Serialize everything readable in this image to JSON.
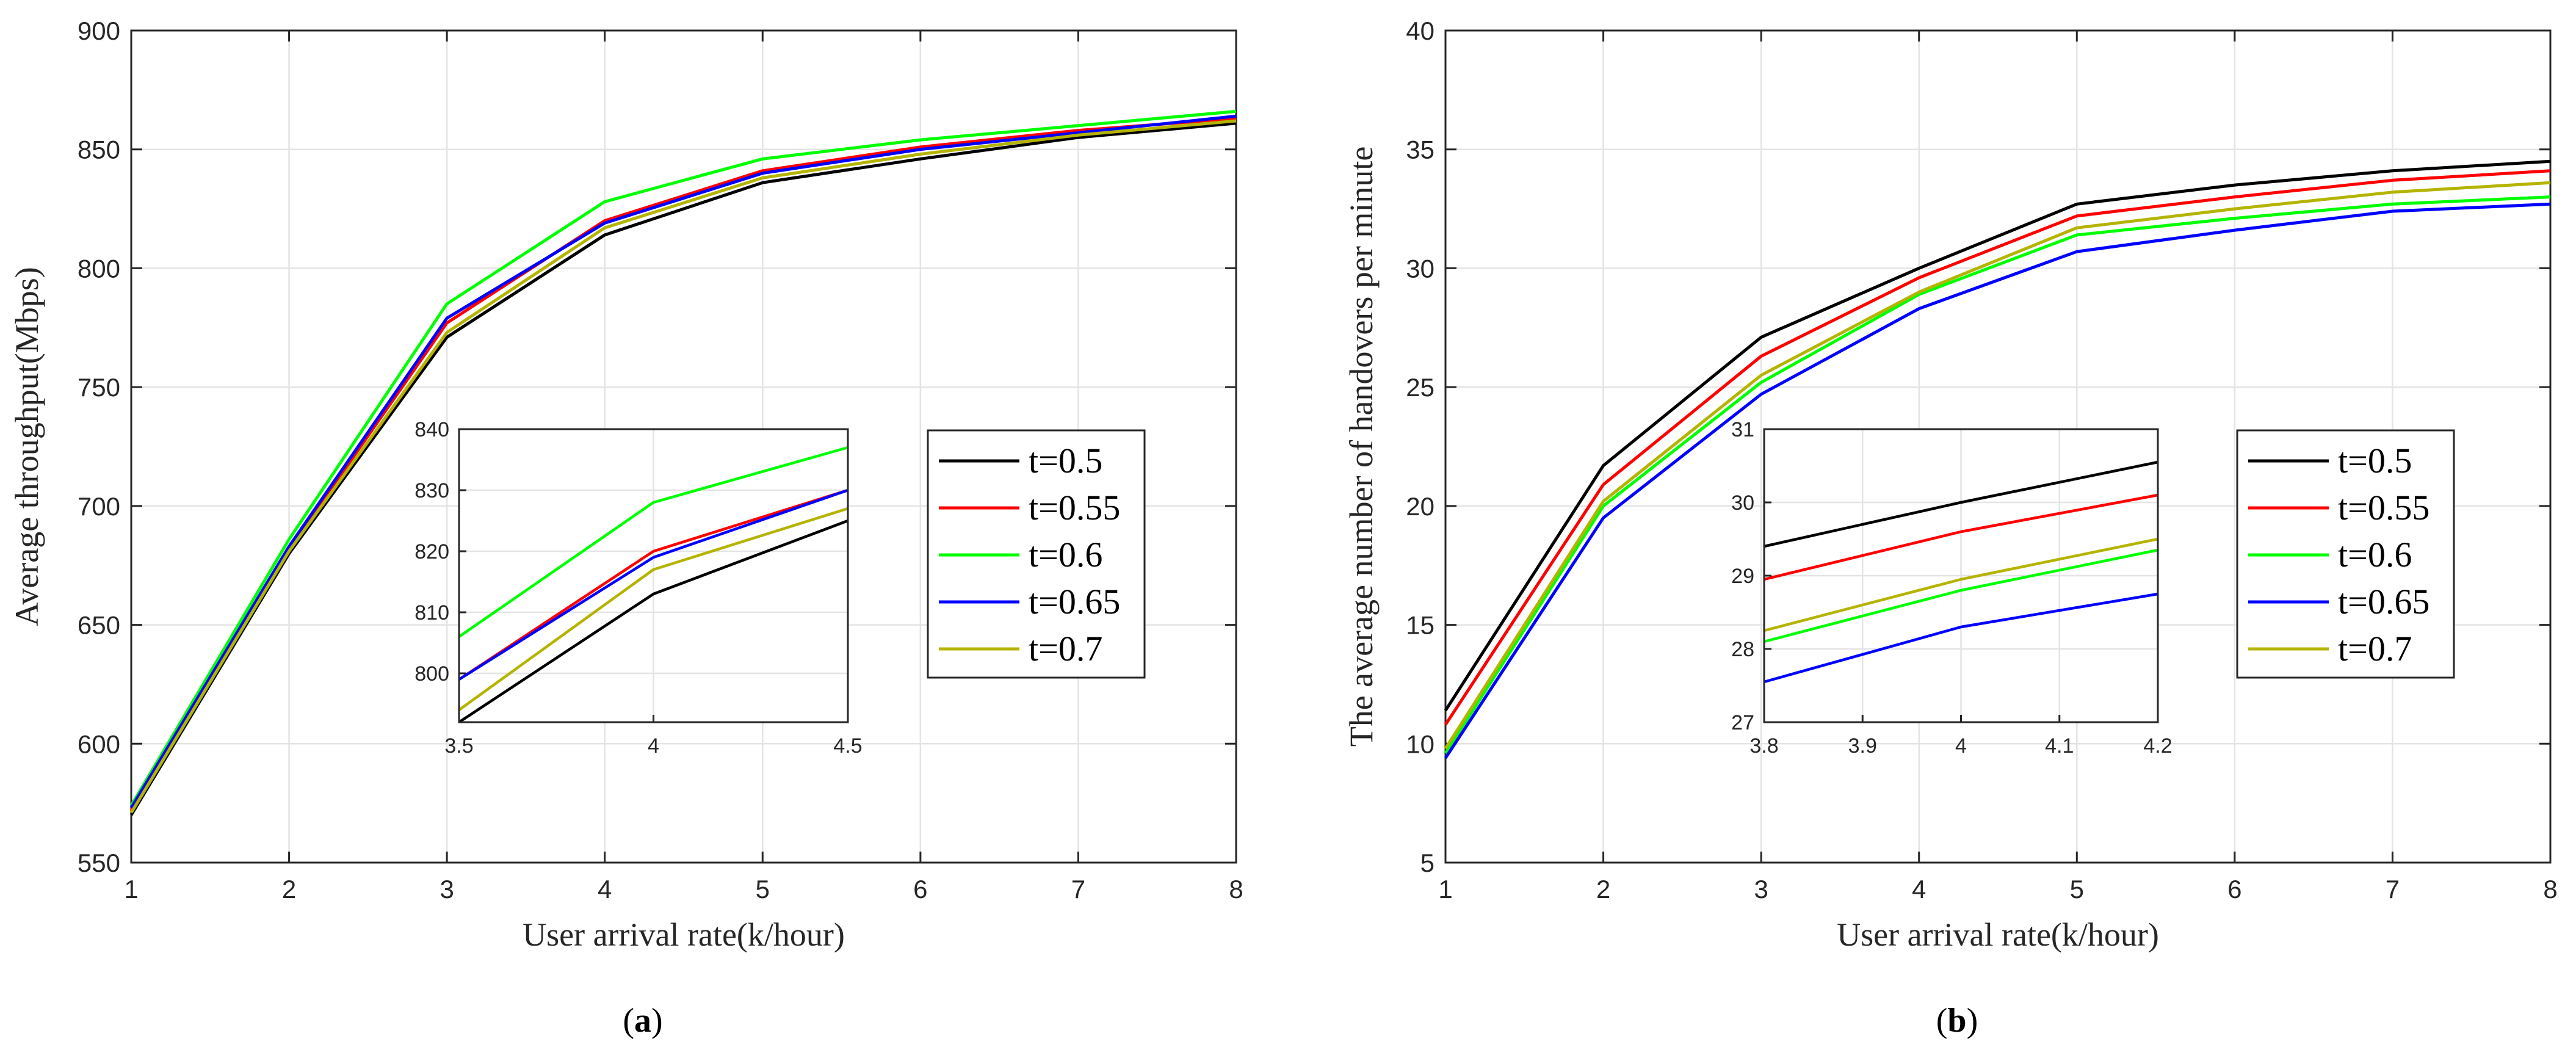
{
  "chart_data": [
    {
      "type": "line",
      "panel": "a",
      "caption": "(a)",
      "xlabel": "User arrival rate(k/hour)",
      "ylabel": "Average throughput(Mbps)",
      "xlim": [
        1,
        8
      ],
      "ylim": [
        550,
        900
      ],
      "xticks": [
        1,
        2,
        3,
        4,
        5,
        6,
        7,
        8
      ],
      "yticks": [
        550,
        600,
        650,
        700,
        750,
        800,
        850,
        900
      ],
      "grid": true,
      "legend_position": "right-middle",
      "x": [
        1,
        2,
        3,
        4,
        5,
        6,
        7,
        8
      ],
      "series": [
        {
          "name": "t=0.5",
          "color": "#000000",
          "values": [
            570,
            680,
            771,
            814,
            836,
            846,
            855,
            861
          ]
        },
        {
          "name": "t=0.55",
          "color": "#ff0000",
          "values": [
            572,
            682,
            777,
            820,
            841,
            851,
            858,
            863
          ]
        },
        {
          "name": "t=0.6",
          "color": "#00ff00",
          "values": [
            574,
            686,
            785,
            828,
            846,
            854,
            860,
            866
          ]
        },
        {
          "name": "t=0.65",
          "color": "#0000ff",
          "values": [
            573,
            683,
            779,
            819,
            840,
            850,
            857,
            864
          ]
        },
        {
          "name": "t=0.7",
          "color": "#b4b400",
          "values": [
            571,
            681,
            773,
            817,
            838,
            848,
            856,
            862
          ]
        }
      ],
      "inset": {
        "xlim": [
          3.5,
          4.5
        ],
        "ylim": [
          792,
          840
        ],
        "xticks": [
          3.5,
          4,
          4.5
        ],
        "yticks": [
          800,
          810,
          820,
          830,
          840
        ],
        "x": [
          3.5,
          4,
          4.5
        ],
        "series": [
          {
            "name": "t=0.5",
            "color": "#000000",
            "values": [
              792,
              813,
              825
            ]
          },
          {
            "name": "t=0.55",
            "color": "#ff0000",
            "values": [
              799,
              820,
              830
            ]
          },
          {
            "name": "t=0.6",
            "color": "#00ff00",
            "values": [
              806,
              828,
              837
            ]
          },
          {
            "name": "t=0.65",
            "color": "#0000ff",
            "values": [
              799,
              819,
              830
            ]
          },
          {
            "name": "t=0.7",
            "color": "#b4b400",
            "values": [
              794,
              817,
              827
            ]
          }
        ]
      }
    },
    {
      "type": "line",
      "panel": "b",
      "caption": "(b)",
      "xlabel": "User arrival rate(k/hour)",
      "ylabel": "The average number of handovers per minute",
      "xlim": [
        1,
        8
      ],
      "ylim": [
        5,
        40
      ],
      "xticks": [
        1,
        2,
        3,
        4,
        5,
        6,
        7,
        8
      ],
      "yticks": [
        5,
        10,
        15,
        20,
        25,
        30,
        35,
        40
      ],
      "grid": true,
      "legend_position": "right-middle",
      "x": [
        1,
        2,
        3,
        4,
        5,
        6,
        7,
        8
      ],
      "series": [
        {
          "name": "t=0.5",
          "color": "#000000",
          "values": [
            11.4,
            21.7,
            27.1,
            30.0,
            32.7,
            33.5,
            34.1,
            34.5
          ]
        },
        {
          "name": "t=0.55",
          "color": "#ff0000",
          "values": [
            10.8,
            20.9,
            26.3,
            29.6,
            32.2,
            33.0,
            33.7,
            34.1
          ]
        },
        {
          "name": "t=0.6",
          "color": "#00ff00",
          "values": [
            9.6,
            20.0,
            25.2,
            28.9,
            31.4,
            32.1,
            32.7,
            33.0
          ]
        },
        {
          "name": "t=0.65",
          "color": "#0000ff",
          "values": [
            9.4,
            19.5,
            24.7,
            28.3,
            30.7,
            31.6,
            32.4,
            32.7
          ]
        },
        {
          "name": "t=0.7",
          "color": "#b4b400",
          "values": [
            9.8,
            20.2,
            25.5,
            29.0,
            31.7,
            32.5,
            33.2,
            33.6
          ]
        }
      ],
      "inset": {
        "xlim": [
          3.8,
          4.2
        ],
        "ylim": [
          27,
          31
        ],
        "xticks": [
          3.8,
          3.9,
          4,
          4.1,
          4.2
        ],
        "yticks": [
          27,
          28,
          29,
          30,
          31
        ],
        "x": [
          3.8,
          4,
          4.2
        ],
        "series": [
          {
            "name": "t=0.5",
            "color": "#000000",
            "values": [
              29.4,
              30.0,
              30.55
            ]
          },
          {
            "name": "t=0.55",
            "color": "#ff0000",
            "values": [
              28.95,
              29.6,
              30.1
            ]
          },
          {
            "name": "t=0.6",
            "color": "#00ff00",
            "values": [
              28.1,
              28.8,
              29.35
            ]
          },
          {
            "name": "t=0.65",
            "color": "#0000ff",
            "values": [
              27.55,
              28.3,
              28.75
            ]
          },
          {
            "name": "t=0.7",
            "color": "#b4b400",
            "values": [
              28.25,
              28.95,
              29.5
            ]
          }
        ]
      }
    }
  ]
}
